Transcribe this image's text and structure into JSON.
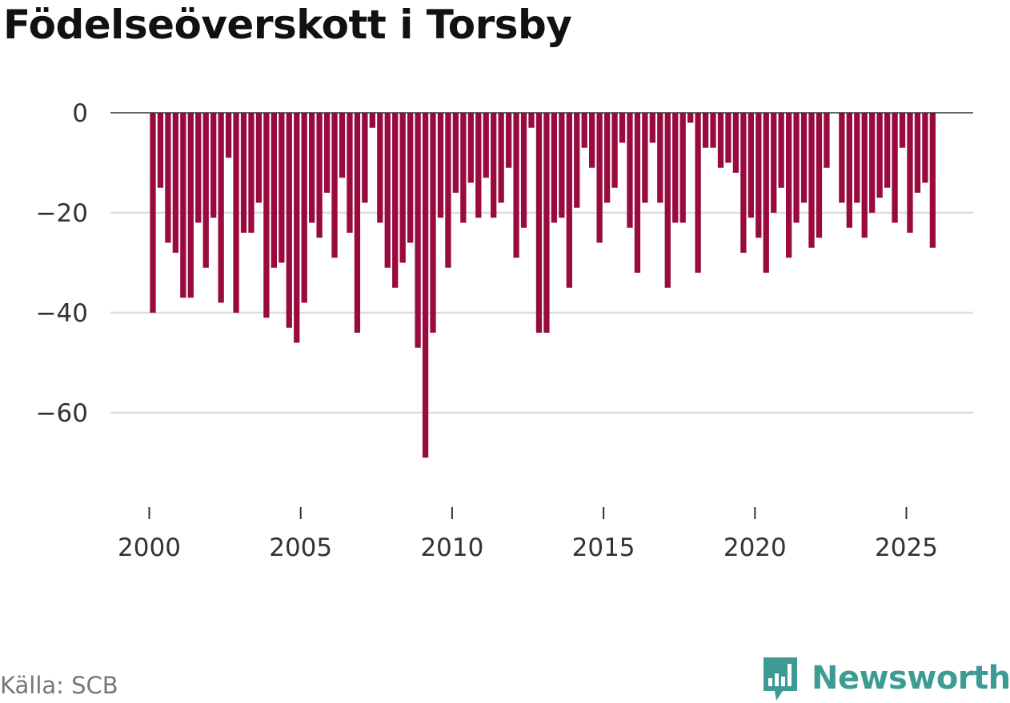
{
  "title": "Födelseöverskott i Torsby",
  "source": "Källa: SCB",
  "brand": "Newsworthy",
  "colors": {
    "bar": "#990b3f",
    "grid": "#dddddd",
    "zero_line": "#333333",
    "brand": "#3d9a95"
  },
  "icons": {
    "brand_logo": "bar-chart-speech-bubble-icon"
  },
  "chart_data": {
    "type": "bar",
    "title": "Födelseöverskott i Torsby",
    "xlabel": "",
    "ylabel": "",
    "x_start": "2000-Q1",
    "frequency": "quarterly",
    "x_ticks": [
      "2000",
      "2005",
      "2010",
      "2015",
      "2020",
      "2025"
    ],
    "y_ticks": [
      "0",
      "−20",
      "−40",
      "−60"
    ],
    "ylim": [
      -80,
      0
    ],
    "grid": true,
    "values": [
      -40,
      -15,
      -26,
      -28,
      -37,
      -37,
      -22,
      -31,
      -21,
      -38,
      -9,
      -40,
      -24,
      -24,
      -18,
      -41,
      -31,
      -30,
      -43,
      -46,
      -38,
      -22,
      -25,
      -16,
      -29,
      -13,
      -24,
      -44,
      -18,
      -3,
      -22,
      -31,
      -35,
      -30,
      -26,
      -47,
      -69,
      -44,
      -21,
      -31,
      -16,
      -22,
      -14,
      -21,
      -13,
      -21,
      -18,
      -11,
      -29,
      -23,
      -3,
      -44,
      -44,
      -22,
      -21,
      -35,
      -19,
      -7,
      -11,
      -26,
      -18,
      -15,
      -6,
      -23,
      -32,
      -18,
      -6,
      -18,
      -35,
      -22,
      -22,
      -2,
      -32,
      -7,
      -7,
      -11,
      -10,
      -12,
      -28,
      -21,
      -25,
      -32,
      -20,
      -15,
      -29,
      -22,
      -18,
      -27,
      -25,
      -11,
      null,
      -18,
      -23,
      -18,
      -25,
      -20,
      -17,
      -15,
      -22,
      -7,
      -24,
      -16,
      -14,
      -27
    ]
  }
}
